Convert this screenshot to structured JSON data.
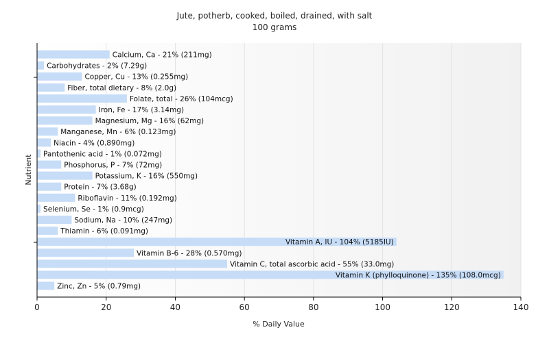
{
  "chart_data": {
    "type": "bar",
    "orientation": "horizontal",
    "title": "Jute, potherb, cooked, boiled, drained, with salt",
    "subtitle": "100 grams",
    "xlabel": "% Daily Value",
    "ylabel": "Nutrient",
    "xlim": [
      0,
      140
    ],
    "xticks": [
      "0",
      "20",
      "40",
      "60",
      "80",
      "100",
      "120",
      "140"
    ],
    "grid": true,
    "bar_color": "#c6dcf7",
    "categories": [
      "Calcium, Ca",
      "Carbohydrates",
      "Copper, Cu",
      "Fiber, total dietary",
      "Folate, total",
      "Iron, Fe",
      "Magnesium, Mg",
      "Manganese, Mn",
      "Niacin",
      "Pantothenic acid",
      "Phosphorus, P",
      "Potassium, K",
      "Protein",
      "Riboflavin",
      "Selenium, Se",
      "Sodium, Na",
      "Thiamin",
      "Vitamin A, IU",
      "Vitamin B-6",
      "Vitamin C, total ascorbic acid",
      "Vitamin K (phylloquinone)",
      "Zinc, Zn"
    ],
    "values": [
      21,
      2,
      13,
      8,
      26,
      17,
      16,
      6,
      4,
      1,
      7,
      16,
      7,
      11,
      1,
      10,
      6,
      104,
      28,
      55,
      135,
      5
    ],
    "labels": [
      "Calcium, Ca - 21% (211mg)",
      "Carbohydrates - 2% (7.29g)",
      "Copper, Cu - 13% (0.255mg)",
      "Fiber, total dietary - 8% (2.0g)",
      "Folate, total - 26% (104mcg)",
      "Iron, Fe - 17% (3.14mg)",
      "Magnesium, Mg - 16% (62mg)",
      "Manganese, Mn - 6% (0.123mg)",
      "Niacin - 4% (0.890mg)",
      "Pantothenic acid - 1% (0.072mg)",
      "Phosphorus, P - 7% (72mg)",
      "Potassium, K - 16% (550mg)",
      "Protein - 7% (3.68g)",
      "Riboflavin - 11% (0.192mg)",
      "Selenium, Se - 1% (0.9mcg)",
      "Sodium, Na - 10% (247mg)",
      "Thiamin - 6% (0.091mg)",
      "Vitamin A, IU - 104% (5185IU)",
      "Vitamin B-6 - 28% (0.570mg)",
      "Vitamin C, total ascorbic acid - 55% (33.0mg)",
      "Vitamin K (phylloquinone) - 135% (108.0mcg)",
      "Zinc, Zn - 5% (0.79mg)"
    ]
  }
}
